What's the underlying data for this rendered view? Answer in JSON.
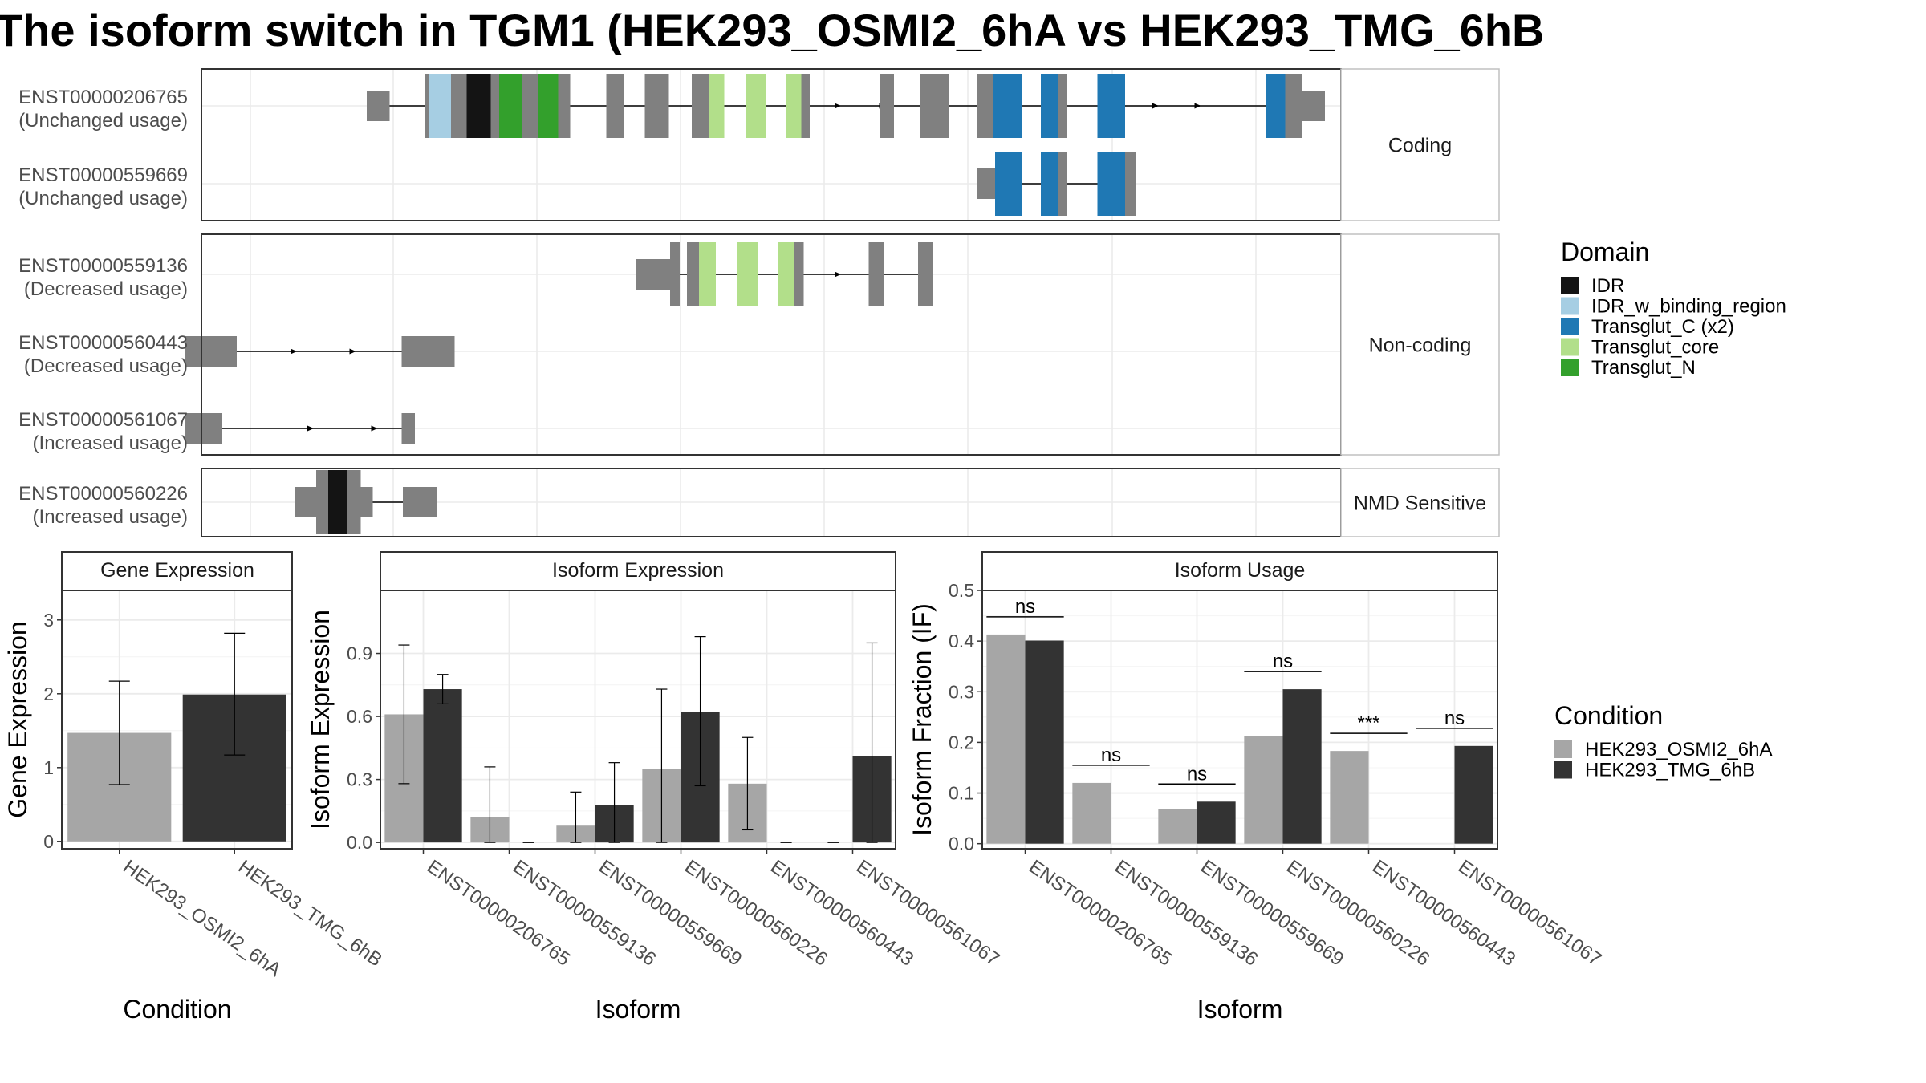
{
  "title": "The isoform switch in TGM1 (HEK293_OSMI2_6hA vs HEK293_TMG_6hB",
  "colors": {
    "IDR": "#141414",
    "IDR_w_binding_region": "#a6cee3",
    "Transglut_C (x2)": "#1f78b4",
    "Transglut_core": "#b2df8a",
    "Transglut_N": "#33a02c",
    "none": "#808080",
    "cond_a": "#a6a6a6",
    "cond_b": "#333333"
  },
  "structure": {
    "facets": [
      {
        "label": "Coding",
        "tracks": [
          {
            "id": "ENST00000206765",
            "usage": "(Unchanged usage)",
            "exons": [
              [
                -52,
                -33,
                "s"
              ],
              [
                -4,
                0,
                "n"
              ],
              [
                0,
                18,
                "IDR_w_binding_region"
              ],
              [
                18,
                31,
                "n"
              ],
              [
                31,
                51,
                "IDR"
              ],
              [
                51,
                58,
                "n"
              ],
              [
                58,
                77,
                "Transglut_N"
              ],
              [
                77,
                90,
                "n"
              ],
              [
                90,
                107,
                "Transglut_N"
              ],
              [
                107,
                117,
                "n"
              ],
              [
                147,
                162,
                "n"
              ],
              [
                179,
                199,
                "n"
              ],
              [
                218,
                232,
                "n"
              ],
              [
                232,
                245,
                "Transglut_core"
              ],
              [
                263,
                280,
                "Transglut_core"
              ],
              [
                296,
                309,
                "Transglut_core"
              ],
              [
                309,
                316,
                "n"
              ],
              [
                374,
                386,
                "n"
              ],
              [
                408,
                432,
                "n"
              ],
              [
                455,
                468,
                "n"
              ],
              [
                468,
                492,
                "Transglut_C (x2)"
              ],
              [
                508,
                522,
                "Transglut_C (x2)"
              ],
              [
                522,
                530,
                "n"
              ],
              [
                555,
                578,
                "Transglut_C (x2)"
              ],
              [
                695,
                711,
                "Transglut_C (x2)"
              ],
              [
                711,
                725,
                "n"
              ],
              [
                725,
                744,
                "s"
              ]
            ],
            "arrows": [
              340,
              377,
              604,
              639
            ]
          },
          {
            "id": "ENST00000559669",
            "usage": "(Unchanged usage)",
            "exons": [
              [
                455,
                470,
                "s"
              ],
              [
                470,
                492,
                "Transglut_C (x2)"
              ],
              [
                508,
                522,
                "Transglut_C (x2)"
              ],
              [
                522,
                530,
                "n"
              ],
              [
                555,
                578,
                "Transglut_C (x2)"
              ],
              [
                578,
                587,
                "n"
              ]
            ],
            "arrows": []
          }
        ]
      },
      {
        "label": "Non-coding",
        "tracks": [
          {
            "id": "ENST00000559136",
            "usage": "(Decreased usage)",
            "exons": [
              [
                172,
                201,
                "s"
              ],
              [
                200,
                208,
                "n"
              ],
              [
                214,
                224,
                "n"
              ],
              [
                224,
                238,
                "Transglut_core"
              ],
              [
                256,
                273,
                "Transglut_core"
              ],
              [
                290,
                303,
                "Transglut_core"
              ],
              [
                303,
                311,
                "n"
              ],
              [
                365,
                378,
                "n"
              ],
              [
                406,
                418,
                "n"
              ]
            ],
            "arrows": [
              340
            ]
          },
          {
            "id": "ENST00000560443",
            "usage": "(Decreased usage)",
            "exons": [
              [
                -203,
                -160,
                "s"
              ],
              [
                -23,
                21,
                "s"
              ]
            ],
            "arrows": [
              -112,
              -63
            ]
          },
          {
            "id": "ENST00000561067",
            "usage": "(Increased usage)",
            "exons": [
              [
                -203,
                -172,
                "s"
              ],
              [
                -23,
                -12,
                "s"
              ]
            ],
            "arrows": [
              -98,
              -45
            ]
          }
        ]
      },
      {
        "label": "NMD Sensitive",
        "tracks": [
          {
            "id": "ENST00000560226",
            "usage": "(Increased usage)",
            "exons": [
              [
                -112,
                -94,
                "s"
              ],
              [
                -94,
                -84,
                "n"
              ],
              [
                -84,
                -68,
                "IDR"
              ],
              [
                -68,
                -57,
                "n"
              ],
              [
                -57,
                -47,
                "s"
              ],
              [
                -22,
                6,
                "s"
              ]
            ],
            "arrows": []
          }
        ]
      }
    ]
  },
  "legend_domain": {
    "title": "Domain",
    "items": [
      "IDR",
      "IDR_w_binding_region",
      "Transglut_C (x2)",
      "Transglut_core",
      "Transglut_N"
    ]
  },
  "legend_condition": {
    "title": "Condition",
    "items": [
      "HEK293_OSMI2_6hA",
      "HEK293_TMG_6hB"
    ]
  },
  "chart_data": [
    {
      "type": "bar",
      "title": "Gene Expression",
      "xlabel": "Condition",
      "ylabel": "Gene Expression",
      "categories": [
        "HEK293_OSMI2_6hA",
        "HEK293_TMG_6hB"
      ],
      "values": [
        1.47,
        1.99
      ],
      "error_low": [
        0.77,
        1.17
      ],
      "error_high": [
        2.17,
        2.82
      ],
      "ylim": [
        -0.1,
        3.4
      ],
      "yticks": [
        "0",
        "1",
        "2",
        "3"
      ]
    },
    {
      "type": "bar",
      "title": "Isoform Expression",
      "xlabel": "Isoform",
      "ylabel": "Isoform Expression",
      "categories": [
        "ENST00000206765",
        "ENST00000559136",
        "ENST00000559669",
        "ENST00000560226",
        "ENST00000560443",
        "ENST00000561067"
      ],
      "series": [
        {
          "name": "HEK293_OSMI2_6hA",
          "values": [
            0.61,
            0.12,
            0.08,
            0.35,
            0.28,
            0.0
          ],
          "error_low": [
            0.28,
            0.0,
            0.0,
            0.0,
            0.06,
            0.0
          ],
          "error_high": [
            0.94,
            0.36,
            0.24,
            0.73,
            0.5,
            0.0
          ]
        },
        {
          "name": "HEK293_TMG_6hB",
          "values": [
            0.73,
            0.0,
            0.18,
            0.62,
            0.0,
            0.41
          ],
          "error_low": [
            0.66,
            0.0,
            0.0,
            0.27,
            0.0,
            0.0
          ],
          "error_high": [
            0.8,
            0.0,
            0.38,
            0.98,
            0.0,
            0.95
          ]
        }
      ],
      "ylim": [
        -0.03,
        1.2
      ],
      "yticks": [
        "0.0",
        "0.3",
        "0.6",
        "0.9"
      ]
    },
    {
      "type": "bar",
      "title": "Isoform Usage",
      "xlabel": "Isoform",
      "ylabel": "Isoform Fraction (IF)",
      "categories": [
        "ENST00000206765",
        "ENST00000559136",
        "ENST00000559669",
        "ENST00000560226",
        "ENST00000560443",
        "ENST00000561067"
      ],
      "series": [
        {
          "name": "HEK293_OSMI2_6hA",
          "values": [
            0.413,
            0.12,
            0.068,
            0.212,
            0.183,
            0.0
          ]
        },
        {
          "name": "HEK293_TMG_6hB",
          "values": [
            0.401,
            0.0,
            0.083,
            0.305,
            0.0,
            0.193
          ]
        }
      ],
      "significance": [
        "ns",
        "ns",
        "ns",
        "ns",
        "***",
        "ns"
      ],
      "ylim": [
        -0.01,
        0.5
      ],
      "yticks": [
        "0.0",
        "0.1",
        "0.2",
        "0.3",
        "0.4",
        "0.5"
      ]
    }
  ]
}
